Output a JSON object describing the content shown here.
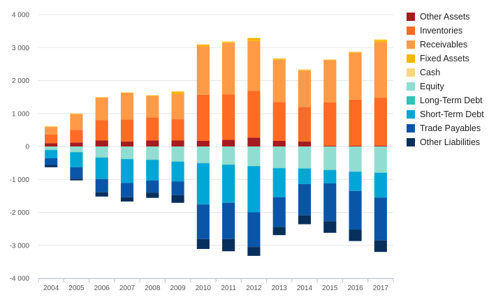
{
  "chart_data": {
    "type": "bar",
    "stacked": true,
    "categories": [
      "2004",
      "2005",
      "2006",
      "2007",
      "2008",
      "2009",
      "2010",
      "2011",
      "2012",
      "2013",
      "2014",
      "2015",
      "2016",
      "2017"
    ],
    "ylim": [
      -4000,
      4000
    ],
    "yticks": [
      -4000,
      -3000,
      -2000,
      -1000,
      0,
      1000,
      2000,
      3000,
      4000
    ],
    "ytick_labels": [
      "-4 000",
      "-3 000",
      "-2 000",
      "-1 000",
      "0",
      "1 000",
      "2 000",
      "3 000",
      "4 000"
    ],
    "grid": true,
    "legend_position": "right",
    "series": [
      {
        "name": "Other Assets",
        "color": "#a51c20",
        "values": [
          100,
          120,
          180,
          150,
          180,
          180,
          170,
          200,
          270,
          170,
          150,
          20,
          20,
          20
        ]
      },
      {
        "name": "Inventories",
        "color": "#ff6b23",
        "values": [
          260,
          380,
          620,
          670,
          700,
          650,
          1400,
          1380,
          1420,
          1180,
          1050,
          1320,
          1400,
          1460
        ]
      },
      {
        "name": "Receivables",
        "color": "#ff9a46",
        "values": [
          230,
          480,
          680,
          800,
          650,
          760,
          1470,
          1560,
          1510,
          1280,
          1100,
          1280,
          1420,
          1680
        ]
      },
      {
        "name": "Fixed Assets",
        "color": "#f9b500",
        "values": [
          10,
          10,
          10,
          10,
          20,
          70,
          50,
          30,
          90,
          30,
          20,
          10,
          20,
          70
        ]
      },
      {
        "name": "Cash",
        "color": "#fbd77f",
        "values": [
          20,
          20,
          10,
          10,
          10,
          20,
          10,
          20,
          10,
          20,
          20,
          20,
          20,
          20
        ]
      },
      {
        "name": "Equity",
        "color": "#91ddd1",
        "values": [
          -100,
          -170,
          -330,
          -380,
          -400,
          -450,
          -500,
          -550,
          -590,
          -650,
          -660,
          -710,
          -760,
          -790
        ]
      },
      {
        "name": "Long-Term Debt",
        "color": "#2ec4b6",
        "values": [
          -10,
          -10,
          -10,
          -10,
          -10,
          -10,
          -10,
          -10,
          -10,
          -10,
          -10,
          -10,
          -10,
          -10
        ]
      },
      {
        "name": "Short-Term Debt",
        "color": "#00a6d6",
        "values": [
          -250,
          -450,
          -650,
          -720,
          -620,
          -600,
          -1250,
          -1150,
          -1400,
          -880,
          -470,
          -400,
          -580,
          -750
        ]
      },
      {
        "name": "Trade Payables",
        "color": "#0a55a8",
        "values": [
          -200,
          -350,
          -400,
          -430,
          -370,
          -420,
          -1050,
          -1100,
          -1050,
          -900,
          -950,
          -1150,
          -1170,
          -1300
        ]
      },
      {
        "name": "Other Liabilities",
        "color": "#072f5b",
        "values": [
          -70,
          -50,
          -130,
          -130,
          -160,
          -230,
          -300,
          -370,
          -270,
          -250,
          -270,
          -350,
          -350,
          -350
        ]
      }
    ]
  }
}
